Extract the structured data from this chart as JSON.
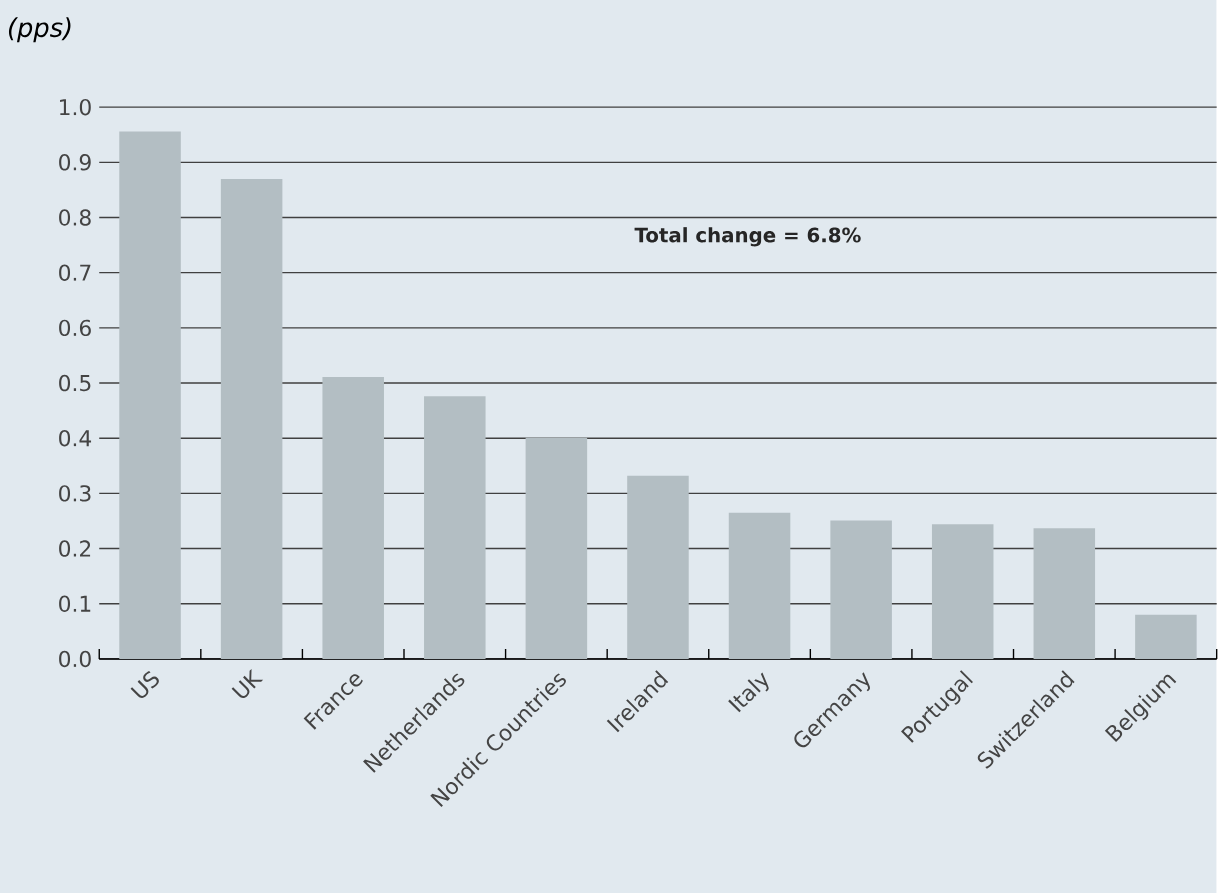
{
  "chart_data": {
    "type": "bar",
    "ylabel": "(pps)",
    "categories": [
      "US",
      "UK",
      "France",
      "Netherlands",
      "Nordic Countries",
      "Ireland",
      "Italy",
      "Germany",
      "Portugal",
      "Switzerland",
      "Belgium"
    ],
    "values": [
      0.956,
      0.87,
      0.511,
      0.476,
      0.401,
      0.332,
      0.265,
      0.251,
      0.244,
      0.237,
      0.08
    ],
    "color": "#b3bec3",
    "ylim": [
      0,
      1.0
    ],
    "yticks": [
      {
        "value": 0,
        "label": "0.0"
      },
      0.1,
      0.2,
      0.3,
      0.4,
      0.5,
      0.6,
      0.7,
      0.8,
      0.9,
      {
        "value": 1.0,
        "label": "1.0"
      }
    ],
    "grid": "y",
    "annotations": [
      "Total change = 6.8%"
    ]
  }
}
